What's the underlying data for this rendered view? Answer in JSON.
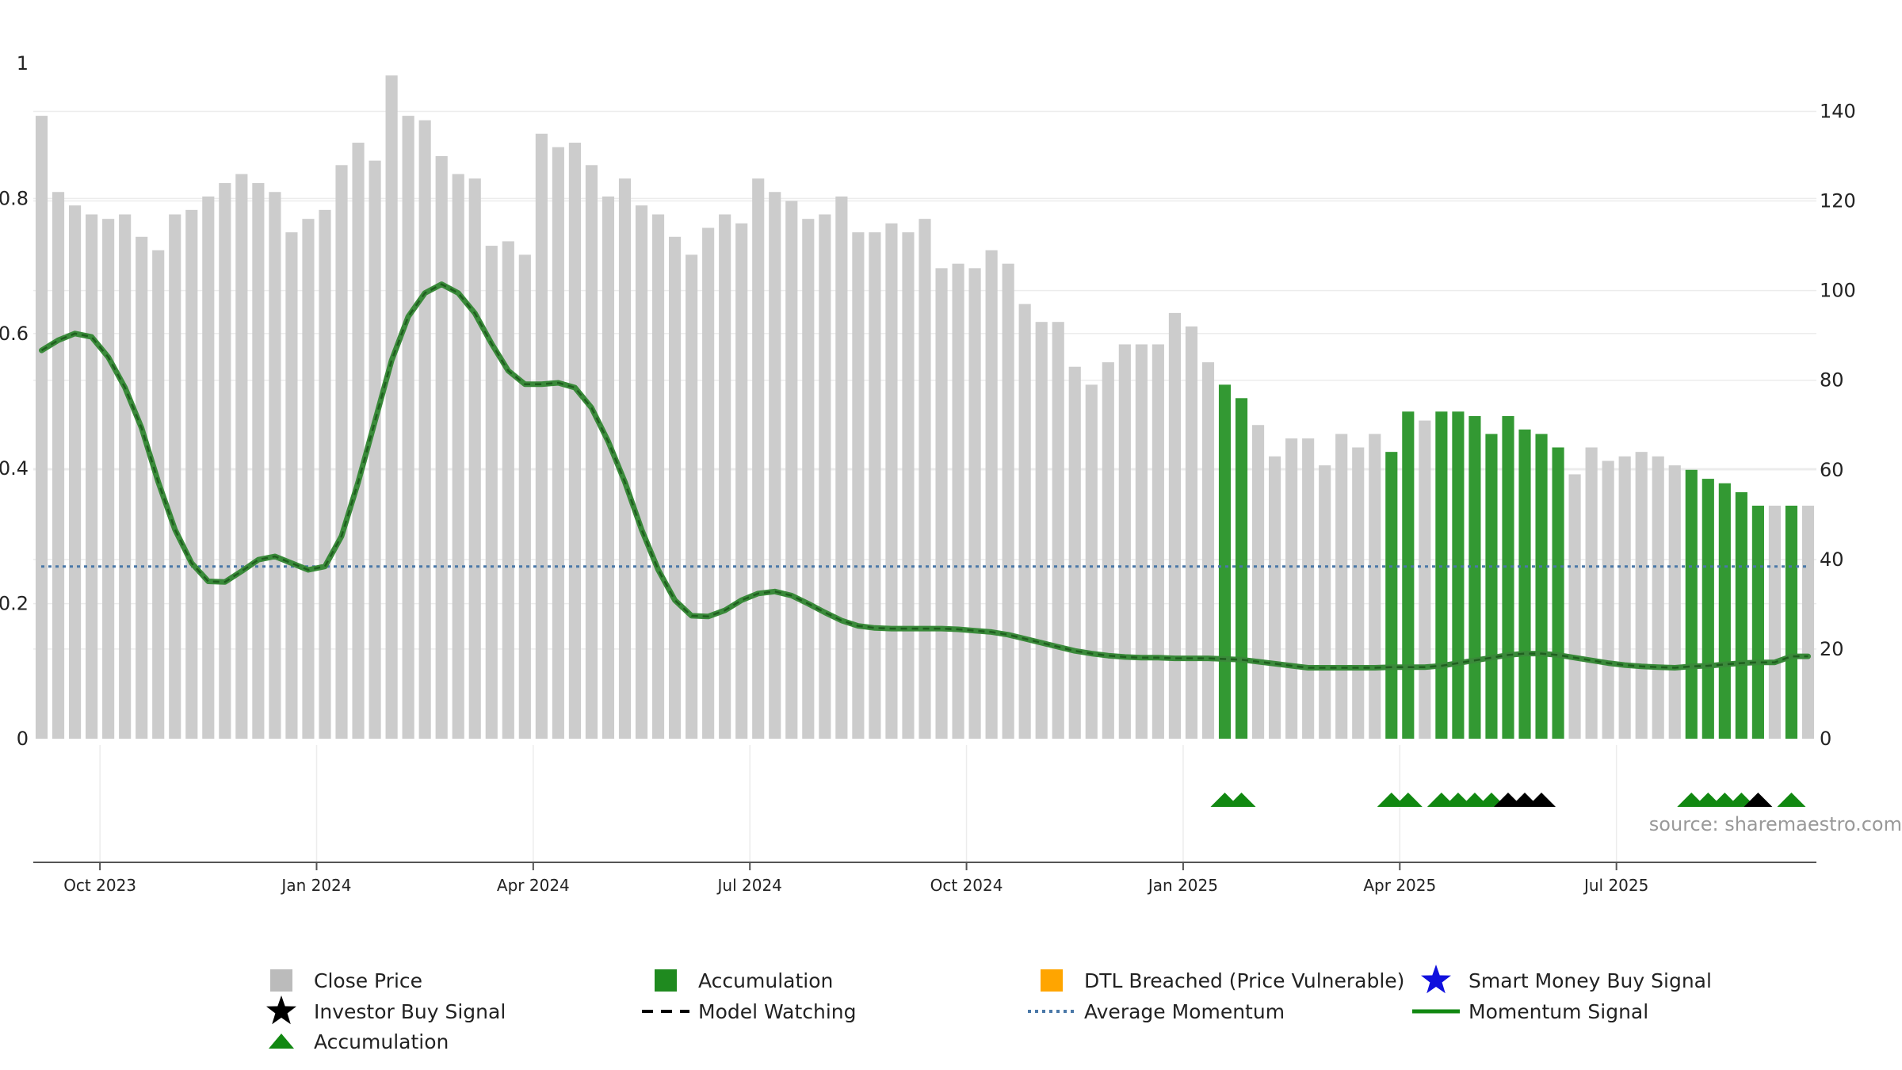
{
  "chart_data": {
    "type": "bar",
    "title": "",
    "xlabel": "",
    "ylabel": "",
    "source_label": "source: sharemaestro.com",
    "left_axis": {
      "ticks": [
        "0",
        "0.2",
        "0.4",
        "0.6",
        "0.8",
        "1"
      ],
      "ylim": [
        0,
        1
      ]
    },
    "right_axis": {
      "ticks": [
        "0",
        "20",
        "40",
        "60",
        "80",
        "100",
        "120",
        "140"
      ],
      "ylim": [
        0,
        156
      ]
    },
    "x_ticks": [
      {
        "label": "Oct 2023",
        "week": 4
      },
      {
        "label": "Jan 2024",
        "week": 17
      },
      {
        "label": "Apr 2024",
        "week": 30
      },
      {
        "label": "Jul 2024",
        "week": 43
      },
      {
        "label": "Oct 2024",
        "week": 56
      },
      {
        "label": "Jan 2025",
        "week": 69
      },
      {
        "label": "Apr 2025",
        "week": 82
      },
      {
        "label": "Jul 2025",
        "week": 95
      }
    ],
    "weeks": 107,
    "close_prices": [
      139,
      122,
      119,
      117,
      116,
      117,
      112,
      109,
      117,
      118,
      121,
      124,
      126,
      124,
      122,
      113,
      116,
      118,
      128,
      133,
      129,
      148,
      139,
      138,
      130,
      126,
      125,
      110,
      111,
      108,
      135,
      132,
      133,
      128,
      121,
      125,
      119,
      117,
      112,
      108,
      114,
      117,
      115,
      125,
      122,
      120,
      116,
      117,
      121,
      113,
      113,
      115,
      113,
      116,
      105,
      106,
      105,
      109,
      106,
      97,
      93,
      93,
      83,
      79,
      84,
      88,
      88,
      88,
      95,
      92,
      84,
      79,
      76,
      70,
      63,
      67,
      67,
      61,
      68,
      65,
      68,
      64,
      73,
      71,
      73,
      73,
      72,
      68,
      72,
      69,
      68,
      65,
      59,
      65,
      62,
      63,
      64,
      63,
      61,
      60,
      58,
      57,
      55,
      52,
      52,
      52,
      52
    ],
    "accumulation_weeks": [
      71,
      72,
      81,
      82,
      84,
      85,
      86,
      87,
      88,
      89,
      90,
      91,
      99,
      100,
      101,
      102,
      103,
      105
    ],
    "momentum_signal": [
      0.575,
      0.59,
      0.6,
      0.595,
      0.565,
      0.52,
      0.46,
      0.38,
      0.31,
      0.26,
      0.233,
      0.232,
      0.248,
      0.265,
      0.27,
      0.26,
      0.25,
      0.255,
      0.3,
      0.38,
      0.47,
      0.56,
      0.625,
      0.66,
      0.673,
      0.66,
      0.63,
      0.585,
      0.545,
      0.525,
      0.525,
      0.527,
      0.52,
      0.49,
      0.44,
      0.38,
      0.31,
      0.25,
      0.205,
      0.182,
      0.181,
      0.19,
      0.205,
      0.215,
      0.218,
      0.212,
      0.2,
      0.187,
      0.175,
      0.167,
      0.164,
      0.163,
      0.163,
      0.163,
      0.163,
      0.162,
      0.16,
      0.158,
      0.154,
      0.148,
      0.142,
      0.136,
      0.13,
      0.126,
      0.123,
      0.121,
      0.12,
      0.12,
      0.119,
      0.119,
      0.119,
      0.118,
      0.117,
      0.114,
      0.111,
      0.108,
      0.105,
      0.105,
      0.105,
      0.105,
      0.105,
      0.106,
      0.106,
      0.106,
      0.108,
      0.112,
      0.116,
      0.12,
      0.124,
      0.126,
      0.126,
      0.124,
      0.12,
      0.116,
      0.112,
      0.109,
      0.107,
      0.106,
      0.105,
      0.107,
      0.108,
      0.11,
      0.112,
      0.113,
      0.113,
      0.122,
      0.122
    ],
    "average_momentum": 0.255,
    "triangle_markers": [
      {
        "week": 71,
        "type": "accumulation"
      },
      {
        "week": 72,
        "type": "accumulation"
      },
      {
        "week": 81,
        "type": "accumulation"
      },
      {
        "week": 82,
        "type": "accumulation"
      },
      {
        "week": 84,
        "type": "accumulation"
      },
      {
        "week": 85,
        "type": "accumulation"
      },
      {
        "week": 86,
        "type": "accumulation"
      },
      {
        "week": 87,
        "type": "accumulation"
      },
      {
        "week": 88,
        "type": "investor_buy"
      },
      {
        "week": 89,
        "type": "investor_buy"
      },
      {
        "week": 90,
        "type": "investor_buy"
      },
      {
        "week": 99,
        "type": "accumulation"
      },
      {
        "week": 100,
        "type": "accumulation"
      },
      {
        "week": 101,
        "type": "accumulation"
      },
      {
        "week": 102,
        "type": "accumulation"
      },
      {
        "week": 103,
        "type": "investor_buy"
      },
      {
        "week": 105,
        "type": "accumulation"
      }
    ],
    "legend": [
      {
        "label": "Close Price",
        "symbol": "grey-square"
      },
      {
        "label": "Accumulation",
        "symbol": "green-square"
      },
      {
        "label": "DTL Breached (Price Vulnerable)",
        "symbol": "orange-square"
      },
      {
        "label": "Smart Money Buy Signal",
        "symbol": "blue-star"
      },
      {
        "label": "Investor Buy Signal",
        "symbol": "black-star"
      },
      {
        "label": "Model Watching",
        "symbol": "black-dash"
      },
      {
        "label": "Average Momentum",
        "symbol": "blue-dotted"
      },
      {
        "label": "Momentum Signal",
        "symbol": "green-line"
      },
      {
        "label": "Accumulation",
        "symbol": "green-triangle"
      }
    ],
    "colors": {
      "close_bar": "#cccccc",
      "accumulation_bar": "#339933",
      "momentum_line": "#3a8a3a",
      "momentum_core": "#1f5f1f",
      "average_line": "#4a78a8",
      "triangle_accumulation": "#118811",
      "triangle_investor": "#000000",
      "legend_close": "#bbbbbb",
      "legend_accumulation": "#1f8a1f",
      "legend_dtl": "#ffa500",
      "legend_smart_money": "#1010dd",
      "legend_investor": "#000000",
      "axis_text": "#222222",
      "grid": "#ececec",
      "source_text": "#999999"
    }
  }
}
